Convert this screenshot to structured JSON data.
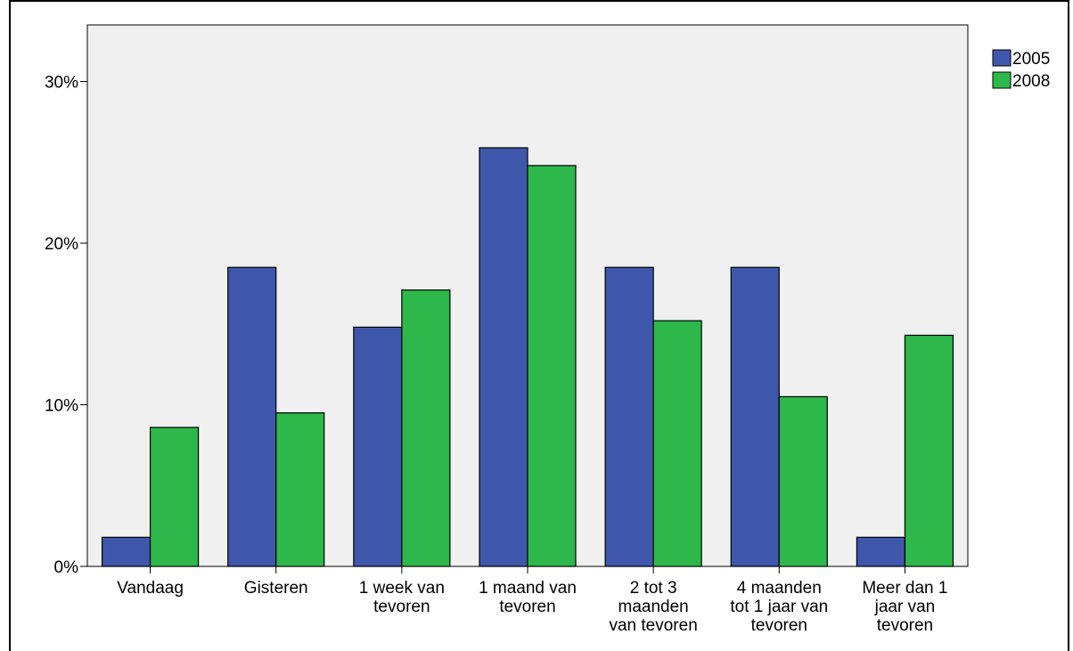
{
  "chart_data": {
    "type": "bar",
    "categories": [
      [
        "Vandaag"
      ],
      [
        "Gisteren"
      ],
      [
        "1 week van",
        "tevoren"
      ],
      [
        "1 maand van",
        "tevoren"
      ],
      [
        "2 tot 3",
        "maanden",
        "van tevoren"
      ],
      [
        "4 maanden",
        "tot 1 jaar van",
        "tevoren"
      ],
      [
        "Meer dan 1",
        "jaar van",
        "tevoren"
      ]
    ],
    "series": [
      {
        "name": "2005",
        "color": "#3f57ab",
        "values": [
          1.8,
          18.5,
          14.8,
          25.9,
          18.5,
          18.5,
          1.8
        ]
      },
      {
        "name": "2008",
        "color": "#2eb74a",
        "values": [
          8.6,
          9.5,
          17.1,
          24.8,
          15.2,
          10.5,
          14.3
        ]
      }
    ],
    "yticks": [
      {
        "value": 0,
        "label": "0%"
      },
      {
        "value": 10,
        "label": "10%"
      },
      {
        "value": 20,
        "label": "20%"
      },
      {
        "value": 30,
        "label": "30%"
      }
    ],
    "ylim": [
      0,
      33.5
    ],
    "grid": false,
    "legend_position": "top-right",
    "plot_background": "#f0f0f0"
  }
}
